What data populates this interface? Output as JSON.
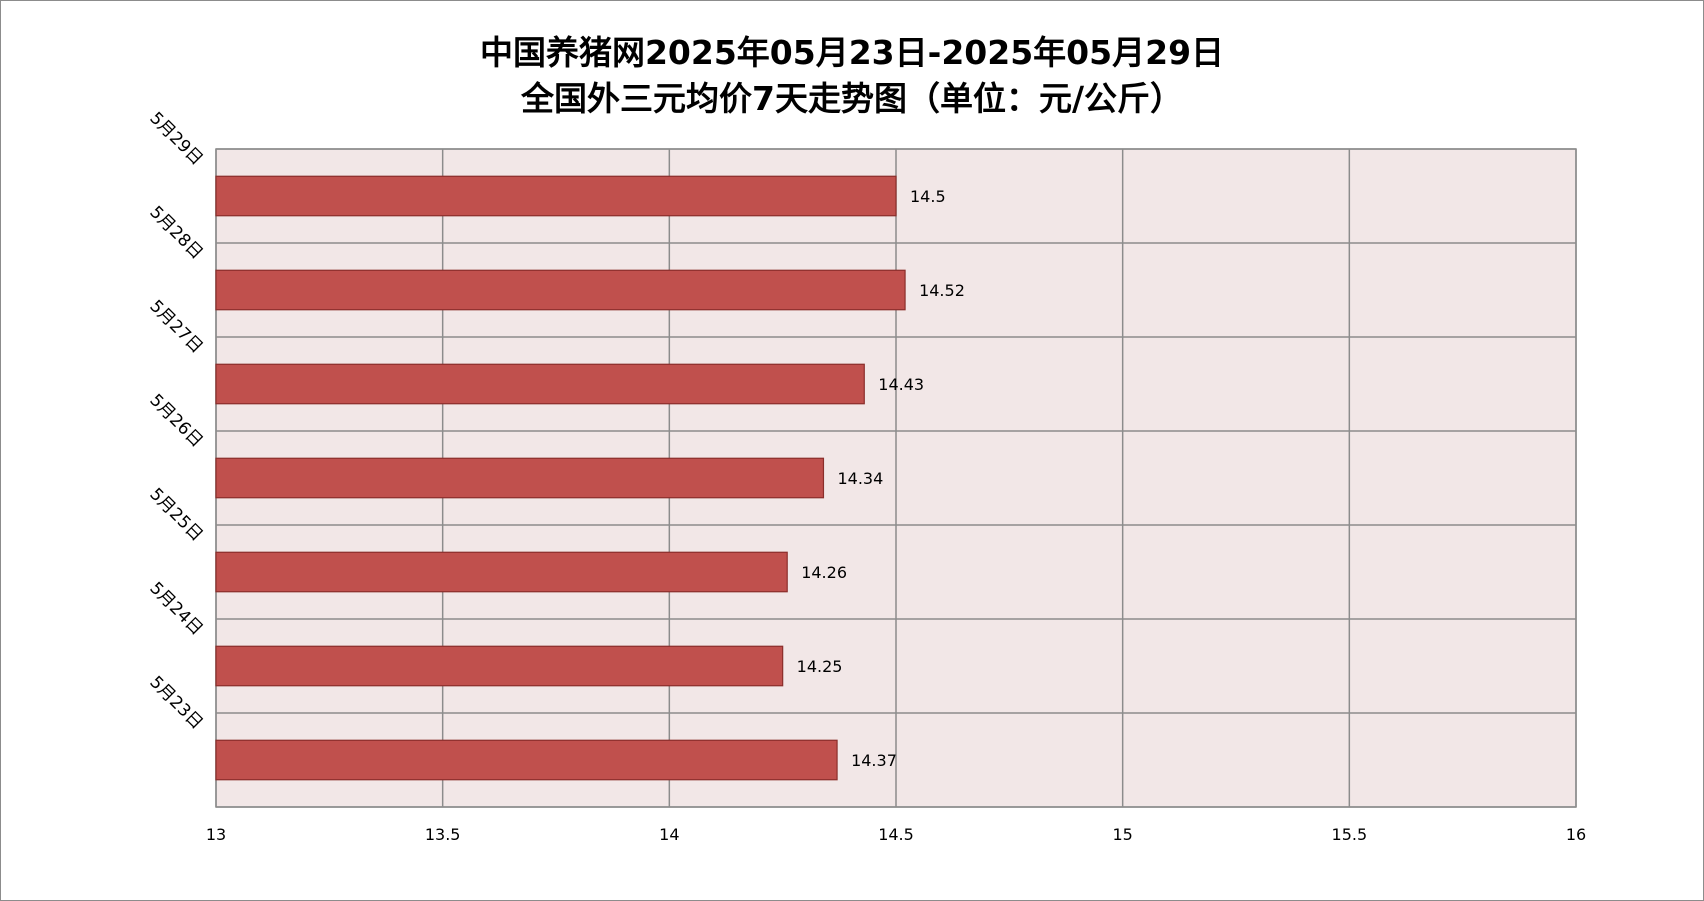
{
  "chart_data": {
    "type": "bar",
    "orientation": "horizontal",
    "title": [
      "中国养猪网2025年05月23日-2025年05月29日",
      "全国外三元均价7天走势图（单位：元/公斤）"
    ],
    "categories": [
      "5月29日",
      "5月28日",
      "5月27日",
      "5月26日",
      "5月25日",
      "5月24日",
      "5月23日"
    ],
    "values": [
      14.5,
      14.52,
      14.43,
      14.34,
      14.26,
      14.25,
      14.37
    ],
    "value_labels": [
      "14.5",
      "14.52",
      "14.43",
      "14.34",
      "14.26",
      "14.25",
      "14.37"
    ],
    "xlim": [
      13,
      16
    ],
    "xticks": [
      13,
      13.5,
      14,
      14.5,
      15,
      15.5,
      16
    ],
    "xtick_labels": [
      "13",
      "13.5",
      "14",
      "14.5",
      "15",
      "15.5",
      "16"
    ],
    "xlabel": "",
    "ylabel": "",
    "grid": true,
    "legend": "none",
    "colors": {
      "bar_fill": "#c0504d",
      "bar_stroke": "#8b2e2b",
      "plot_background": "#f2e7e7",
      "grid": "#8c8c8c"
    }
  }
}
